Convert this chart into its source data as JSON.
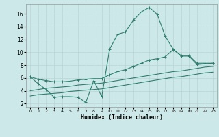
{
  "xlabel": "Humidex (Indice chaleur)",
  "bg_color": "#cce8e8",
  "line_color": "#2e7d6e",
  "grid_color": "#b8d4d4",
  "xlim": [
    -0.5,
    23.5
  ],
  "ylim": [
    1.5,
    17.5
  ],
  "xticks": [
    0,
    1,
    2,
    3,
    4,
    5,
    6,
    7,
    8,
    9,
    10,
    11,
    12,
    13,
    14,
    15,
    16,
    17,
    18,
    19,
    20,
    21,
    22,
    23
  ],
  "yticks": [
    2,
    4,
    6,
    8,
    10,
    12,
    14,
    16
  ],
  "curve1_x": [
    0,
    1,
    2,
    3,
    4,
    5,
    6,
    7,
    8,
    9,
    10,
    11,
    12,
    13,
    14,
    15,
    16,
    17,
    18,
    19,
    20,
    21,
    22,
    23
  ],
  "curve1_y": [
    6.2,
    5.1,
    4.2,
    3.0,
    3.1,
    3.1,
    3.0,
    2.2,
    5.6,
    3.1,
    10.5,
    12.8,
    13.2,
    15.0,
    16.3,
    17.0,
    15.9,
    12.5,
    10.5,
    9.4,
    9.4,
    8.1,
    8.2,
    8.3
  ],
  "curve2_x": [
    0,
    1,
    2,
    3,
    4,
    5,
    6,
    7,
    8,
    9,
    10,
    11,
    12,
    13,
    14,
    15,
    16,
    17,
    18,
    19,
    20,
    21,
    22,
    23
  ],
  "curve2_y": [
    6.2,
    5.8,
    5.6,
    5.4,
    5.4,
    5.5,
    5.7,
    5.8,
    5.9,
    5.9,
    6.5,
    7.0,
    7.3,
    7.8,
    8.3,
    8.8,
    9.0,
    9.3,
    10.4,
    9.5,
    9.5,
    8.3,
    8.3,
    8.3
  ],
  "curve3_x": [
    0,
    1,
    2,
    3,
    4,
    5,
    6,
    7,
    8,
    9,
    10,
    11,
    12,
    13,
    14,
    15,
    16,
    17,
    18,
    19,
    20,
    21,
    22,
    23
  ],
  "curve3_y": [
    4.0,
    4.2,
    4.4,
    4.5,
    4.6,
    4.7,
    4.9,
    5.0,
    5.1,
    5.2,
    5.4,
    5.6,
    5.8,
    6.0,
    6.2,
    6.4,
    6.6,
    6.8,
    7.0,
    7.1,
    7.3,
    7.5,
    7.7,
    7.8
  ],
  "curve4_x": [
    0,
    1,
    2,
    3,
    4,
    5,
    6,
    7,
    8,
    9,
    10,
    11,
    12,
    13,
    14,
    15,
    16,
    17,
    18,
    19,
    20,
    21,
    22,
    23
  ],
  "curve4_y": [
    3.2,
    3.4,
    3.5,
    3.6,
    3.7,
    3.9,
    4.0,
    4.1,
    4.2,
    4.3,
    4.5,
    4.7,
    4.9,
    5.1,
    5.3,
    5.5,
    5.7,
    5.9,
    6.1,
    6.2,
    6.4,
    6.6,
    6.8,
    6.9
  ]
}
